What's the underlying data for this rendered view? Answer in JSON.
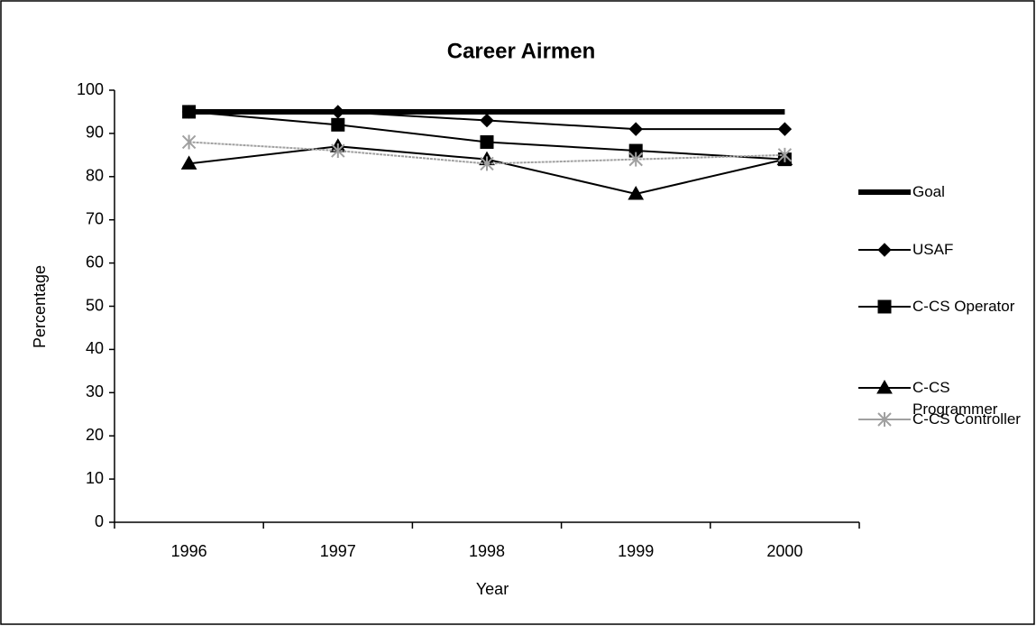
{
  "chart_data": {
    "type": "line",
    "title": "Career Airmen",
    "x_label": "Year",
    "y_label": "Percentage",
    "categories": [
      "1996",
      "1997",
      "1998",
      "1999",
      "2000"
    ],
    "series": [
      {
        "name": "Goal",
        "color": "#000000",
        "marker": "none",
        "values": [
          95,
          95,
          95,
          95,
          95
        ]
      },
      {
        "name": "USAF",
        "color": "#000000",
        "marker": "diamond",
        "values": [
          95,
          95,
          93,
          91,
          91
        ]
      },
      {
        "name": "C-CS Operator",
        "color": "#000000",
        "marker": "square",
        "values": [
          95,
          92,
          88,
          86,
          84
        ]
      },
      {
        "name": "C-CS Programmer",
        "color": "#000000",
        "marker": "triangle",
        "values": [
          83,
          87,
          84,
          76,
          84
        ]
      },
      {
        "name": "C-CS Controller",
        "color": "#a0a0a0",
        "marker": "star",
        "values": [
          88,
          86,
          83,
          84,
          85
        ]
      }
    ],
    "ylim": [
      0,
      100
    ],
    "yticks": [
      0,
      10,
      20,
      30,
      40,
      50,
      60,
      70,
      80,
      90,
      100
    ],
    "grid": false,
    "legend": "right"
  }
}
